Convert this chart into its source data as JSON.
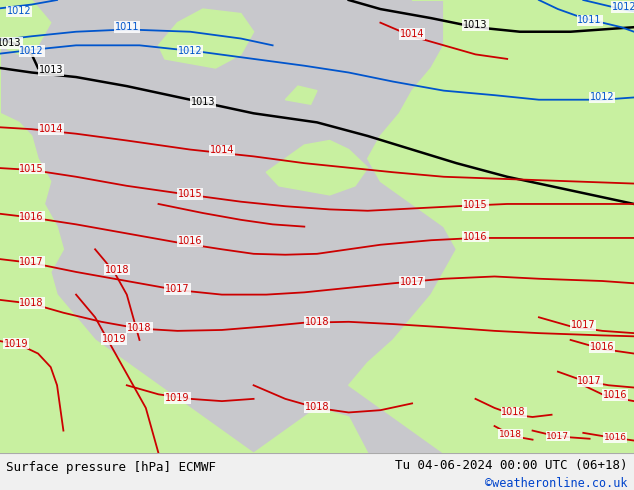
{
  "title_left": "Surface pressure [hPa] ECMWF",
  "title_right": "Tu 04-06-2024 00:00 UTC (06+18)",
  "copyright": "©weatheronline.co.uk",
  "land_color": "#c8f0a0",
  "sea_color": "#c8c8cc",
  "bottom_bar_color": "#f0f0f0",
  "red_color": "#cc0000",
  "blue_color": "#0055cc",
  "black_color": "#000000",
  "iso_lw": 1.3,
  "label_fs": 7
}
